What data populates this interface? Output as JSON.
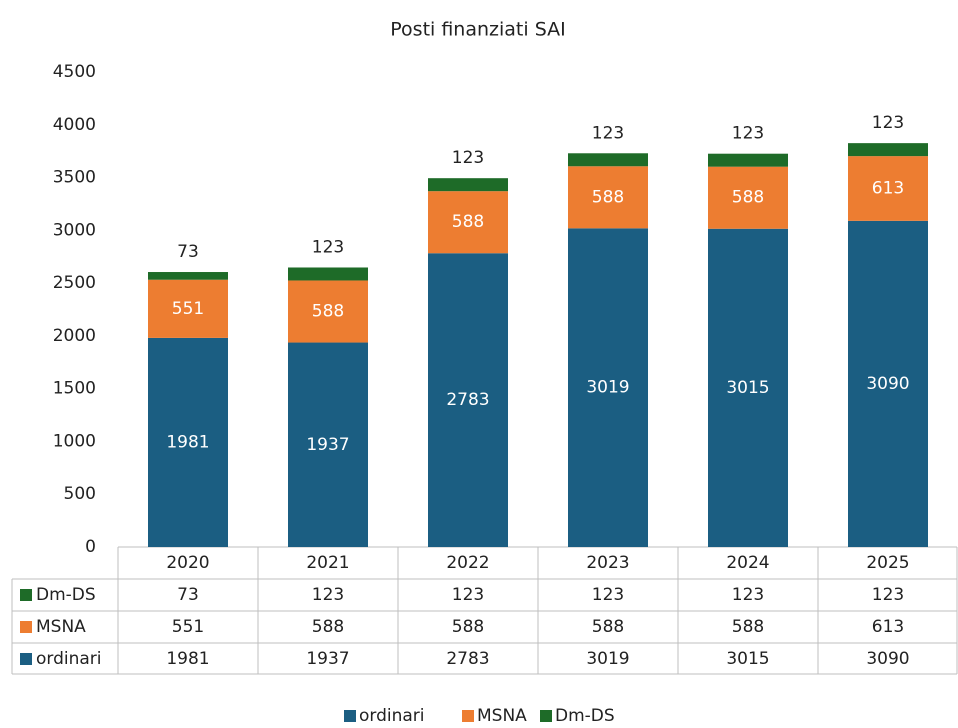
{
  "chart_data": {
    "type": "stacked-bar",
    "title": "Posti finanziati SAI",
    "categories": [
      "2020",
      "2021",
      "2022",
      "2023",
      "2024",
      "2025"
    ],
    "series": [
      {
        "name": "ordinari",
        "color": "#1b5e82",
        "values": [
          1981,
          1937,
          2783,
          3019,
          3015,
          3090
        ]
      },
      {
        "name": "MSNA",
        "color": "#ed7d31",
        "values": [
          551,
          588,
          588,
          588,
          588,
          613
        ]
      },
      {
        "name": "Dm-DS",
        "color": "#1e6b28",
        "values": [
          73,
          123,
          123,
          123,
          123,
          123
        ]
      }
    ],
    "ylim": [
      0,
      4500
    ],
    "yticks": [
      0,
      500,
      1000,
      1500,
      2000,
      2500,
      3000,
      3500,
      4000,
      4500
    ],
    "grid": false,
    "legend": "bottom"
  }
}
